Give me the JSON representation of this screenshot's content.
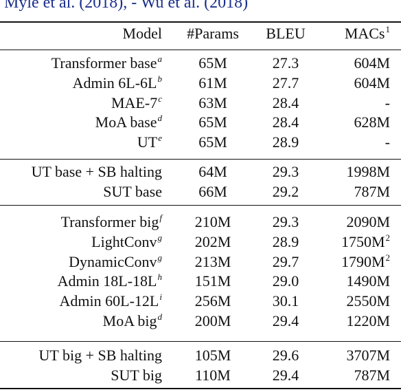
{
  "caption": "Myle et al. (2018), - Wu et al. (2018)",
  "header": {
    "model": "Model",
    "params": "#Params",
    "bleu": "BLEU",
    "macs": "MACs",
    "macs_sup": "1"
  },
  "groups": [
    {
      "rows": [
        {
          "model": "Transformer base",
          "sup": "a",
          "params": "65M",
          "bleu": "27.3",
          "macs": "604M",
          "macs_sup": ""
        },
        {
          "model": "Admin 6L-6L",
          "sup": "b",
          "params": "61M",
          "bleu": "27.7",
          "macs": "604M",
          "macs_sup": ""
        },
        {
          "model": "MAE-7",
          "sup": "c",
          "params": "63M",
          "bleu": "28.4",
          "macs": "-",
          "macs_sup": ""
        },
        {
          "model": "MoA base",
          "sup": "d",
          "params": "65M",
          "bleu": "28.4",
          "macs": "628M",
          "macs_sup": ""
        },
        {
          "model": "UT",
          "sup": "e",
          "params": "65M",
          "bleu": "28.9",
          "macs": "-",
          "macs_sup": ""
        }
      ]
    },
    {
      "rows": [
        {
          "model": "UT base + SB halting",
          "sup": "",
          "params": "64M",
          "bleu": "29.3",
          "macs": "1998M",
          "macs_sup": ""
        },
        {
          "model": "SUT base",
          "sup": "",
          "params": "66M",
          "bleu": "29.2",
          "macs": "787M",
          "macs_sup": ""
        }
      ]
    },
    {
      "rows": [
        {
          "model": "Transformer big",
          "sup": "f",
          "params": "210M",
          "bleu": "29.3",
          "macs": "2090M",
          "macs_sup": ""
        },
        {
          "model": "LightConv",
          "sup": "g",
          "params": "202M",
          "bleu": "28.9",
          "macs": "1750M",
          "macs_sup": "2"
        },
        {
          "model": "DynamicConv",
          "sup": "g",
          "params": "213M",
          "bleu": "29.7",
          "macs": "1790M",
          "macs_sup": "2"
        },
        {
          "model": "Admin 18L-18L",
          "sup": "h",
          "params": "151M",
          "bleu": "29.0",
          "macs": "1490M",
          "macs_sup": ""
        },
        {
          "model": "Admin 60L-12L",
          "sup": "i",
          "params": "256M",
          "bleu": "30.1",
          "macs": "2550M",
          "macs_sup": ""
        },
        {
          "model": "MoA big",
          "sup": "d",
          "params": "200M",
          "bleu": "29.4",
          "macs": "1220M",
          "macs_sup": ""
        }
      ]
    },
    {
      "rows": [
        {
          "model": "UT big + SB halting",
          "sup": "",
          "params": "105M",
          "bleu": "29.6",
          "macs": "3707M",
          "macs_sup": ""
        },
        {
          "model": "SUT big",
          "sup": "",
          "params": "110M",
          "bleu": "29.4",
          "macs": "787M",
          "macs_sup": ""
        }
      ]
    }
  ]
}
